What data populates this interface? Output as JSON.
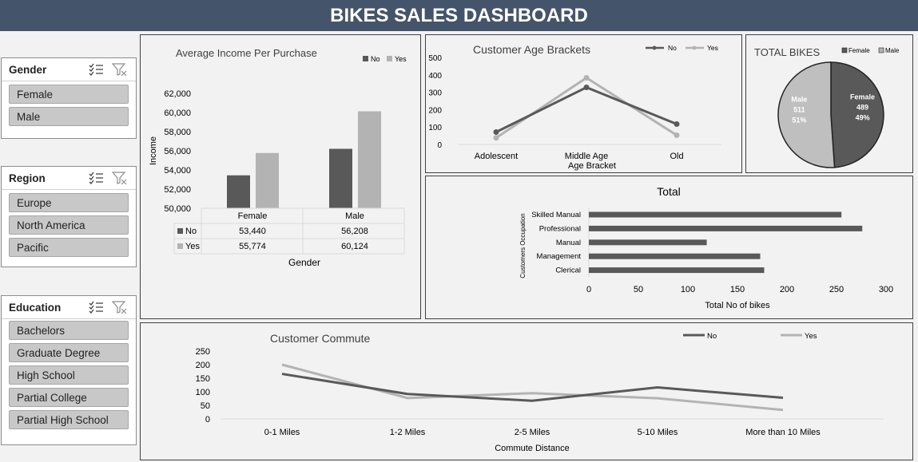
{
  "header": {
    "title": "BIKES SALES DASHBOARD"
  },
  "slicers": [
    {
      "title": "Gender",
      "items": [
        "Female",
        "Male"
      ]
    },
    {
      "title": "Region",
      "items": [
        "Europe",
        "North America",
        "Pacific"
      ]
    },
    {
      "title": "Education",
      "items": [
        "Bachelors",
        "Graduate Degree",
        "High School",
        "Partial College",
        "Partial High School"
      ]
    }
  ],
  "icons": {
    "multi_select": "multi-select-icon",
    "clear_filter": "clear-filter-icon"
  },
  "colors": {
    "no": "#595959",
    "yes": "#b3b3b3",
    "header": "#44546a"
  },
  "chart_data": [
    {
      "id": "income",
      "type": "bar",
      "title": "Average Income Per Purchase",
      "categories": [
        "Female",
        "Male"
      ],
      "series": [
        {
          "name": "No",
          "values": [
            53440,
            56208
          ],
          "labels": [
            "53,440",
            "56,208"
          ]
        },
        {
          "name": "Yes",
          "values": [
            55774,
            60124
          ],
          "labels": [
            "55,774",
            "60,124"
          ]
        }
      ],
      "ylabel": "Income",
      "xlabel": "Gender",
      "ylim": [
        50000,
        62000
      ],
      "yticks": [
        "50,000",
        "52,000",
        "54,000",
        "56,000",
        "58,000",
        "60,000",
        "62,000"
      ],
      "legend": "top-right"
    },
    {
      "id": "age",
      "type": "line",
      "title": "Customer Age Brackets",
      "categories": [
        "Adolescent",
        "Middle Age",
        "Old"
      ],
      "series": [
        {
          "name": "No",
          "values": [
            71,
            328,
            117
          ]
        },
        {
          "name": "Yes",
          "values": [
            38,
            383,
            53
          ]
        }
      ],
      "xlabel": "Age Bracket",
      "ylim": [
        0,
        500
      ],
      "yticks": [
        "0",
        "100",
        "200",
        "300",
        "400",
        "500"
      ],
      "legend": "top-right"
    },
    {
      "id": "total_bikes",
      "type": "pie",
      "title": "TOTAL BIKES",
      "slices": [
        {
          "name": "Female",
          "value": 489,
          "pct": "49%"
        },
        {
          "name": "Male",
          "value": 511,
          "pct": "51%"
        }
      ],
      "legend": "top-right"
    },
    {
      "id": "occupation",
      "type": "bar",
      "orientation": "horizontal",
      "title": "Total",
      "categories": [
        "Skilled Manual",
        "Professional",
        "Manual",
        "Management",
        "Clerical"
      ],
      "values": [
        255,
        276,
        119,
        173,
        177
      ],
      "xlabel": "Total No of bikes",
      "ylabel": "Customers Occupation",
      "xlim": [
        0,
        300
      ],
      "xticks": [
        "0",
        "50",
        "100",
        "150",
        "200",
        "250",
        "300"
      ]
    },
    {
      "id": "commute",
      "type": "line",
      "title": "Customer Commute",
      "categories": [
        "0-1 Miles",
        "1-2 Miles",
        "2-5 Miles",
        "5-10 Miles",
        "More than 10 Miles"
      ],
      "series": [
        {
          "name": "No",
          "values": [
            166,
            92,
            67,
            116,
            78
          ]
        },
        {
          "name": "Yes",
          "values": [
            200,
            77,
            95,
            76,
            33
          ]
        }
      ],
      "xlabel": "Commute Distance",
      "ylim": [
        0,
        250
      ],
      "yticks": [
        "0",
        "50",
        "100",
        "150",
        "200",
        "250"
      ],
      "legend": "top-right"
    }
  ]
}
